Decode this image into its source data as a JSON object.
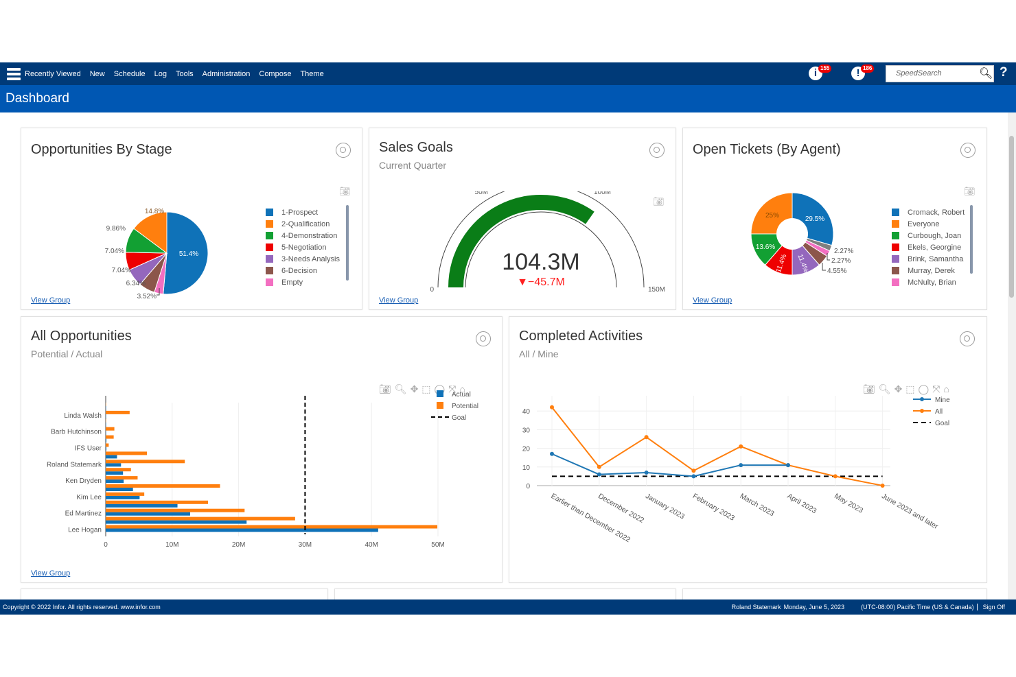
{
  "nav": {
    "items": [
      "Recently Viewed",
      "New",
      "Schedule",
      "Log",
      "Tools",
      "Administration",
      "Compose",
      "Theme"
    ],
    "info_badge": "155",
    "alert_badge": "186",
    "search_placeholder": "SpeedSearch"
  },
  "title": "Dashboard",
  "view_group": "View Group",
  "panels": {
    "opps_by_stage": {
      "title": "Opportunities By Stage"
    },
    "sales_goals": {
      "title": "Sales Goals",
      "subtitle": "Current Quarter"
    },
    "open_tickets": {
      "title": "Open Tickets (By Agent)"
    },
    "all_opps": {
      "title": "All Opportunities",
      "subtitle": "Potential / Actual"
    },
    "completed": {
      "title": "Completed Activities",
      "subtitle": "All / Mine"
    }
  },
  "chart_data": [
    {
      "type": "pie",
      "labels": [
        "1-Prospect",
        "Empty",
        "6-Decision",
        "3-Needs Analysis",
        "5-Negotiation",
        "4-Demonstration",
        "2-Qualification"
      ],
      "values": [
        51.4,
        3.52,
        6.34,
        7.04,
        7.04,
        9.86,
        14.8
      ],
      "value_labels": [
        "51.4%",
        "3.52%",
        "6.34%",
        "7.04%",
        "7.04%",
        "9.86%",
        "14.8%"
      ],
      "colors": [
        "#0f72b8",
        "#f36fc1",
        "#8c564b",
        "#9467bd",
        "#ee0000",
        "#12a033",
        "#ff7f0e"
      ],
      "legend": [
        {
          "label": "1-Prospect",
          "color": "#0f72b8"
        },
        {
          "label": "2-Qualification",
          "color": "#ff7f0e"
        },
        {
          "label": "4-Demonstration",
          "color": "#12a033"
        },
        {
          "label": "5-Negotiation",
          "color": "#ee0000"
        },
        {
          "label": "3-Needs Analysis",
          "color": "#9467bd"
        },
        {
          "label": "6-Decision",
          "color": "#8c564b"
        },
        {
          "label": "Empty",
          "color": "#f36fc1"
        }
      ]
    },
    {
      "type": "gauge",
      "value": 104.3,
      "value_label": "104.3M",
      "delta_label": "▼−45.7M",
      "range": [
        0,
        150
      ],
      "ticks": [
        "0",
        "50M",
        "100M",
        "150M"
      ],
      "bar_color": "#0a7d17",
      "delta_color": "#ff2020"
    },
    {
      "type": "donut",
      "labels": [
        "Cromack, Robert",
        "",
        "McNulty, Brian",
        "Murray, Derek",
        "Brink, Samantha",
        "Ekels, Georgine",
        "Curbough, Joan",
        "Everyone"
      ],
      "values": [
        29.5,
        2.27,
        2.27,
        4.55,
        11.4,
        11.4,
        13.6,
        25
      ],
      "value_labels": [
        "29.5%",
        "2.27%",
        "2.27%",
        "4.55%",
        "11.4%",
        "11.4%",
        "13.6%",
        "25%"
      ],
      "colors": [
        "#0f72b8",
        "#7f7f7f",
        "#f36fc1",
        "#8c564b",
        "#9467bd",
        "#ee0000",
        "#12a033",
        "#ff7f0e"
      ],
      "legend": [
        {
          "label": "Cromack, Robert",
          "color": "#0f72b8"
        },
        {
          "label": "Everyone",
          "color": "#ff7f0e"
        },
        {
          "label": "Curbough, Joan",
          "color": "#12a033"
        },
        {
          "label": "Ekels, Georgine",
          "color": "#ee0000"
        },
        {
          "label": "Brink, Samantha",
          "color": "#9467bd"
        },
        {
          "label": "Murray, Derek",
          "color": "#8c564b"
        },
        {
          "label": "McNulty, Brian",
          "color": "#f36fc1"
        }
      ]
    },
    {
      "type": "bar",
      "orientation": "horizontal",
      "categories": [
        "",
        "Linda Walsh",
        "",
        "Barb Hutchinson",
        "",
        "IFS User",
        "",
        "Roland Statemark",
        "",
        "Ken Dryden",
        "",
        "Kim Lee",
        "",
        "Ed Martinez",
        "",
        "Lee Hogan"
      ],
      "series": [
        {
          "name": "Actual",
          "color": "#0f72b8",
          "values": [
            0,
            0,
            0,
            0,
            0.1,
            0.1,
            1.7,
            2.3,
            2.6,
            2.7,
            4.1,
            5.1,
            10.8,
            12.7,
            21.2,
            41.0
          ]
        },
        {
          "name": "Potential",
          "color": "#ff7f0e",
          "values": [
            0.05,
            3.6,
            0.05,
            1.3,
            1.2,
            0.45,
            6.2,
            11.9,
            3.8,
            4.8,
            17.2,
            5.8,
            15.4,
            20.9,
            28.5,
            49.9
          ]
        }
      ],
      "goal": {
        "name": "Goal",
        "value": 30
      },
      "xlim": [
        0,
        50
      ],
      "xticks": [
        "0",
        "10M",
        "20M",
        "30M",
        "40M",
        "50M"
      ],
      "grid": true,
      "legend": "top-right"
    },
    {
      "type": "line",
      "categories": [
        "Earlier than December 2022",
        "December 2022",
        "January 2023",
        "February 2023",
        "March 2023",
        "April 2023",
        "May 2023",
        "June 2023 and later"
      ],
      "series": [
        {
          "name": "Mine",
          "color": "#1f77b4",
          "values": [
            17,
            6,
            7,
            5,
            11,
            11,
            null,
            null
          ]
        },
        {
          "name": "All",
          "color": "#ff7f0e",
          "values": [
            42,
            10,
            26,
            8,
            21,
            11,
            5,
            0
          ]
        },
        {
          "name": "Goal",
          "color": "#000000",
          "values": [
            5,
            5,
            5,
            5,
            5,
            5,
            5,
            5
          ]
        }
      ],
      "ylim": [
        0,
        45
      ],
      "yticks": [
        "0",
        "10",
        "20",
        "30",
        "40"
      ],
      "grid": true,
      "legend": "top-right"
    }
  ],
  "footer": {
    "copyright": "Copyright © 2022 Infor. All rights reserved. www.infor.com",
    "user": "Roland Statemark",
    "date": "Monday, June 5, 2023",
    "timezone": "(UTC-08:00) Pacific Time (US & Canada)",
    "signoff": "Sign Off"
  }
}
